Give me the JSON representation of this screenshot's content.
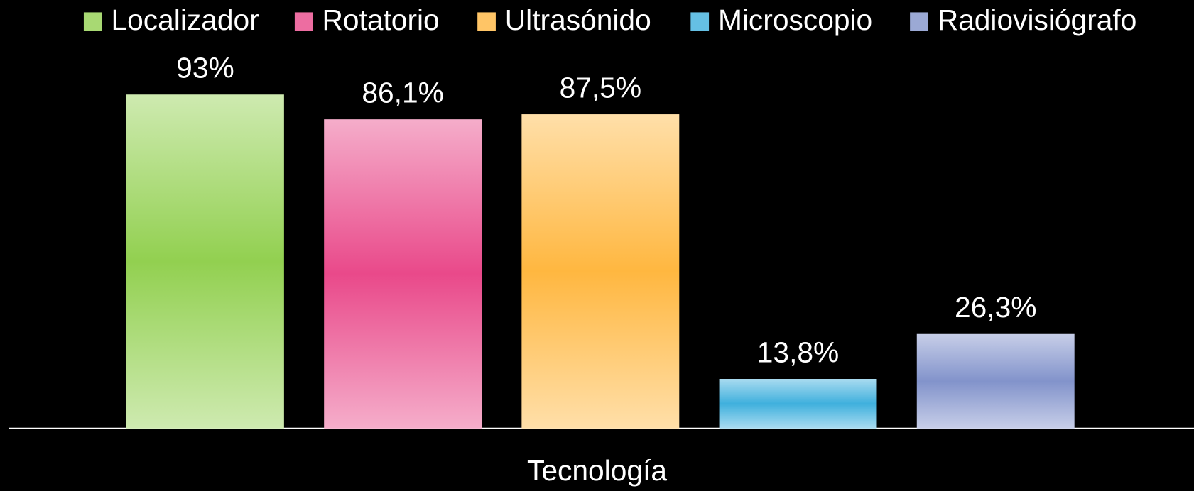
{
  "chart_data": {
    "type": "bar",
    "categories": [
      "Tecnología"
    ],
    "series": [
      {
        "name": "Localizador",
        "color": "#92d050",
        "values": [
          93
        ],
        "value_labels": [
          "93%"
        ]
      },
      {
        "name": "Rotatorio",
        "color": "#e9498a",
        "values": [
          86.1
        ],
        "value_labels": [
          "86,1%"
        ]
      },
      {
        "name": "Ultrasónido",
        "color": "#ffb740",
        "values": [
          87.5
        ],
        "value_labels": [
          "87,5%"
        ]
      },
      {
        "name": "Microscopio",
        "color": "#3fb0dd",
        "values": [
          13.8
        ],
        "value_labels": [
          "13,8%"
        ]
      },
      {
        "name": "Radiovisiógrafo",
        "color": "#8293cb",
        "values": [
          26.3
        ],
        "value_labels": [
          "26,3%"
        ]
      }
    ],
    "ylim": [
      0,
      100
    ],
    "legend": "top"
  }
}
